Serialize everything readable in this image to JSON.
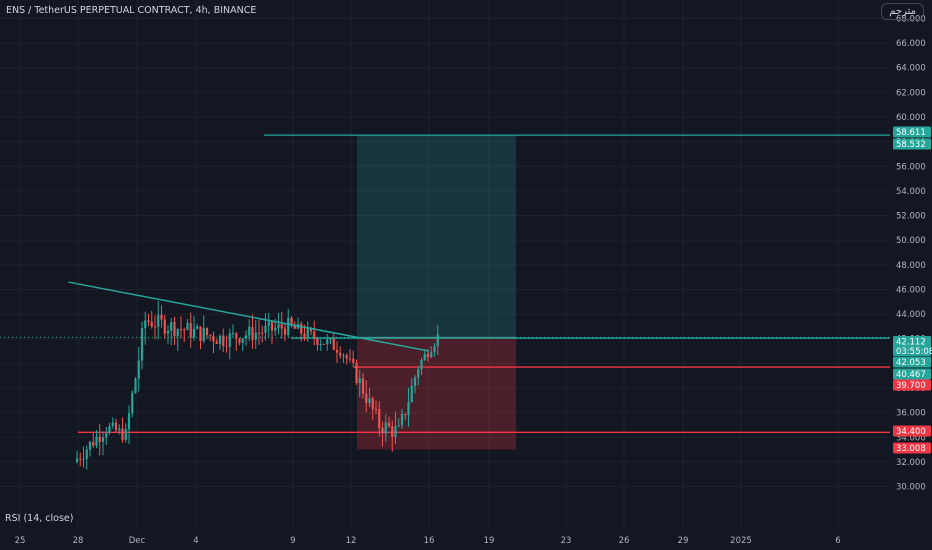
{
  "header": {
    "title": "ENS / TetherUS PERPETUAL CONTRACT, 4h, BINANCE",
    "logo_text": "مترجم"
  },
  "footer": {
    "indicator_label": "RSI (14, close)"
  },
  "colors": {
    "background": "#131722",
    "up": "#26a69a",
    "down": "#ef5350",
    "teal_line": "#26a69a",
    "red_line": "#f23645",
    "target_zone": "rgba(38,166,154,0.22)",
    "stop_zone": "rgba(242,54,69,0.25)",
    "grid": "#1e222d"
  },
  "chart_data": {
    "type": "candlestick",
    "symbol": "ENS / TetherUS PERPETUAL CONTRACT",
    "interval": "4h",
    "exchange": "BINANCE",
    "ylim": [
      28.5,
      69.5
    ],
    "y_ticks": [
      "30.000",
      "32.000",
      "34.000",
      "36.000",
      "38.000",
      "40.000",
      "42.000",
      "44.000",
      "46.000",
      "48.000",
      "50.000",
      "52.000",
      "54.000",
      "56.000",
      "58.000",
      "60.000",
      "62.000",
      "64.000",
      "66.000",
      "68.000"
    ],
    "x_ticks": [
      "25",
      "28",
      "Dec",
      "4",
      "9",
      "12",
      "16",
      "19",
      "23",
      "26",
      "29",
      "2025",
      "6"
    ],
    "candle_segments": [
      {
        "from": 32.0,
        "to": 34.8,
        "n": 10,
        "vol": 1.4
      },
      {
        "from": 34.8,
        "to": 34.2,
        "n": 6,
        "vol": 1.2
      },
      {
        "from": 34.2,
        "to": 43.5,
        "n": 6,
        "vol": 2.0
      },
      {
        "from": 43.5,
        "to": 42.0,
        "n": 24,
        "vol": 1.5
      },
      {
        "from": 42.0,
        "to": 43.0,
        "n": 20,
        "vol": 1.4
      },
      {
        "from": 43.0,
        "to": 41.2,
        "n": 16,
        "vol": 1.2
      },
      {
        "from": 41.2,
        "to": 39.6,
        "n": 4,
        "vol": 1.0
      },
      {
        "from": 39.6,
        "to": 35.0,
        "n": 8,
        "vol": 1.5
      },
      {
        "from": 35.0,
        "to": 34.4,
        "n": 6,
        "vol": 1.6
      },
      {
        "from": 34.4,
        "to": 39.8,
        "n": 6,
        "vol": 1.5
      },
      {
        "from": 39.8,
        "to": 42.2,
        "n": 6,
        "vol": 1.0
      }
    ],
    "annotations": {
      "trendline": {
        "x": [
          "27.5",
          "16"
        ],
        "y": [
          46.6,
          41.0
        ]
      },
      "target_zone": {
        "x": [
          "12.3",
          "20.5"
        ],
        "top": 58.532,
        "bottom": 42.112
      },
      "stop_zone": {
        "x": [
          "12.3",
          "20.5"
        ],
        "top": 42.112,
        "bottom": 33.008
      },
      "horizontal_lines": [
        {
          "value": 58.532,
          "color": "teal",
          "from": "7.5"
        },
        {
          "value": 42.053,
          "color": "teal",
          "from": "8.9"
        },
        {
          "value": 39.7,
          "color": "red",
          "from": "12.1"
        },
        {
          "value": 34.4,
          "color": "red",
          "from": "28"
        }
      ]
    },
    "price_labels": [
      {
        "text": "58.611",
        "value": 58.611,
        "color": "#26a69a"
      },
      {
        "text": "58.532",
        "value": 58.532,
        "color": "#26a69a"
      },
      {
        "text": "42.112",
        "sub": "03:55:08",
        "value": 42.112,
        "color": "#26a69a"
      },
      {
        "text": "42.053",
        "value": 42.053,
        "color": "#26a69a"
      },
      {
        "text": "40.467",
        "value": 40.467,
        "color": "#26a69a"
      },
      {
        "text": "39.700",
        "value": 39.7,
        "color": "#f23645"
      },
      {
        "text": "34.400",
        "value": 34.4,
        "color": "#f23645"
      },
      {
        "text": "33.008",
        "value": 33.008,
        "color": "#f23645"
      }
    ],
    "last_price": 42.112,
    "countdown": "03:55:08"
  }
}
